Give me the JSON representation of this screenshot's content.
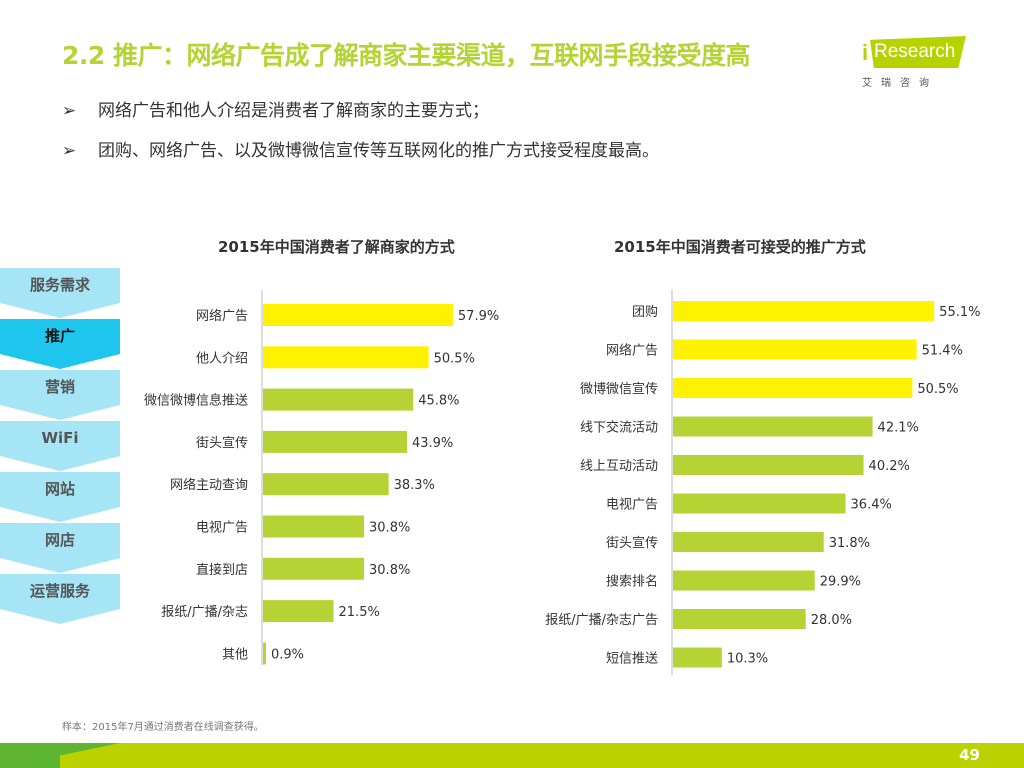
{
  "title": "2.2 推广：网络广告成了解商家主要渠道，互联网手段接受度高",
  "logo": {
    "brand": "iResearch",
    "cn": "艾瑞咨询"
  },
  "bullets": [
    {
      "icon": "arrow-bullet-icon",
      "text": "网络广告和他人介绍是消费者了解商家的主要方式；"
    },
    {
      "icon": "arrow-bullet-icon",
      "text": "团购、网络广告、以及微博微信宣传等互联网化的推广方式接受程度最高。"
    }
  ],
  "nav": [
    {
      "label": "服务需求",
      "active": false
    },
    {
      "label": "推广",
      "active": true
    },
    {
      "label": "营销",
      "active": false
    },
    {
      "label": "WiFi",
      "active": false
    },
    {
      "label": "网站",
      "active": false
    },
    {
      "label": "网店",
      "active": false
    },
    {
      "label": "运营服务",
      "active": false
    }
  ],
  "colors": {
    "highlight": "#fff200",
    "bar": "#b5d334",
    "accent": "#b4d433",
    "nav": "#a6e5f6",
    "nav_active": "#1ec6ee"
  },
  "chart_data": [
    {
      "type": "bar",
      "orientation": "horizontal",
      "title": "2015年中国消费者了解商家的方式",
      "categories": [
        "网络广告",
        "他人介绍",
        "微信微博信息推送",
        "街头宣传",
        "网络主动查询",
        "电视广告",
        "直接到店",
        "报纸/广播/杂志",
        "其他"
      ],
      "values": [
        57.9,
        50.5,
        45.8,
        43.9,
        38.3,
        30.8,
        30.8,
        21.5,
        0.9
      ],
      "labels": [
        "57.9%",
        "50.5%",
        "45.8%",
        "43.9%",
        "38.3%",
        "30.8%",
        "30.8%",
        "21.5%",
        "0.9%"
      ],
      "highlight_count": 2,
      "unit": "%"
    },
    {
      "type": "bar",
      "orientation": "horizontal",
      "title": "2015年中国消费者可接受的推广方式",
      "categories": [
        "团购",
        "网络广告",
        "微博微信宣传",
        "线下交流活动",
        "线上互动活动",
        "电视广告",
        "街头宣传",
        "搜索排名",
        "报纸/广播/杂志广告",
        "短信推送"
      ],
      "values": [
        55.1,
        51.4,
        50.5,
        42.1,
        40.2,
        36.4,
        31.8,
        29.9,
        28.0,
        10.3
      ],
      "labels": [
        "55.1%",
        "51.4%",
        "50.5%",
        "42.1%",
        "40.2%",
        "36.4%",
        "31.8%",
        "29.9%",
        "28.0%",
        "10.3%"
      ],
      "highlight_count": 3,
      "unit": "%"
    }
  ],
  "note": "样本：2015年7月通过消费者在线调查获得。",
  "page_number": "49"
}
